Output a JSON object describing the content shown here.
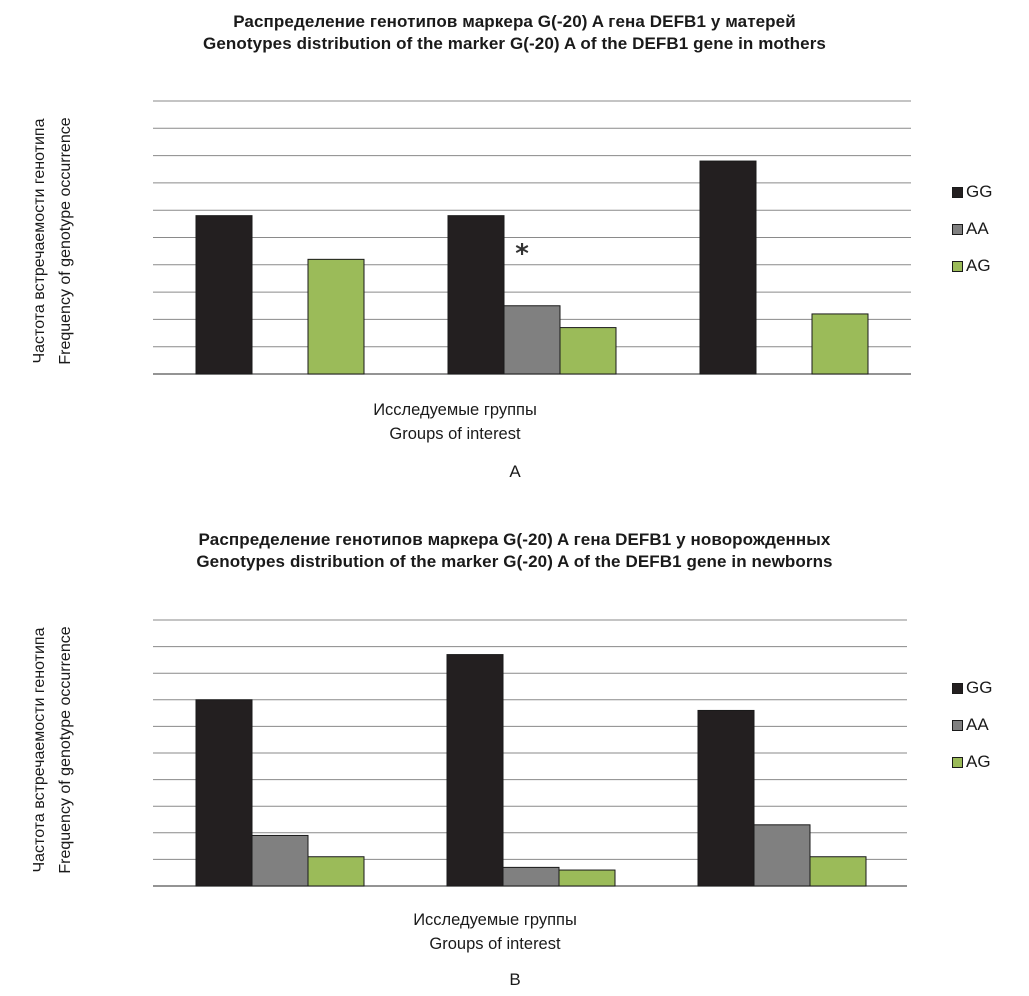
{
  "chart_data": [
    {
      "type": "bar",
      "panel_label": "A",
      "title_ru": "Распределение генотипов маркера G(-20) A гена DEFB1 у матерей",
      "title_en": "Genotypes distribution of the marker G(-20) A of the DEFB1 gene in mothers",
      "ylabel_ru": "Частота встречаемости генотипа",
      "ylabel_en": "Frequency of genotype occurrence",
      "xlabel_ru": "Исследуемые группы",
      "xlabel_en": "Groups of interest",
      "categories": [
        "",
        "",
        ""
      ],
      "ylim": [
        0,
        10
      ],
      "grid": true,
      "legend_position": "right",
      "annotation": "*",
      "series": [
        {
          "name": "GG",
          "color": "#231f20",
          "values": [
            5.8,
            5.8,
            7.8
          ]
        },
        {
          "name": "AA",
          "color": "#808080",
          "values": [
            0,
            2.5,
            0
          ]
        },
        {
          "name": "AG",
          "color": "#9bbb59",
          "values": [
            4.2,
            1.7,
            2.2
          ]
        }
      ]
    },
    {
      "type": "bar",
      "panel_label": "B",
      "title_ru": "Распределение генотипов маркера G(-20) A гена DEFB1 у новорожденных",
      "title_en": "Genotypes distribution of the marker G(-20) A of the DEFB1 gene in newborns",
      "ylabel_ru": "Частота встречаемости генотипа",
      "ylabel_en": "Frequency of genotype occurrence",
      "xlabel_ru": "Исследуемые группы",
      "xlabel_en": "Groups of interest",
      "categories": [
        "",
        "",
        ""
      ],
      "ylim": [
        0,
        10
      ],
      "grid": true,
      "legend_position": "right",
      "series": [
        {
          "name": "GG",
          "color": "#231f20",
          "values": [
            7.0,
            8.7,
            6.6
          ]
        },
        {
          "name": "AA",
          "color": "#808080",
          "values": [
            1.9,
            0.7,
            2.3
          ]
        },
        {
          "name": "AG",
          "color": "#9bbb59",
          "values": [
            1.1,
            0.6,
            1.1
          ]
        }
      ]
    }
  ]
}
